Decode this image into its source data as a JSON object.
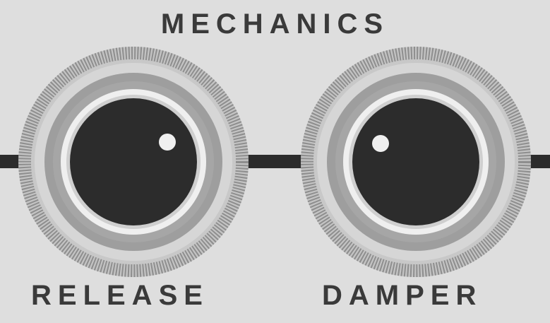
{
  "section": {
    "title": "MECHANICS"
  },
  "knobs": [
    {
      "id": "release",
      "label": "RELEASE"
    },
    {
      "id": "damper",
      "label": "DAMPER"
    }
  ],
  "colors": {
    "background": "#dedede",
    "label_text": "#3a3a3a",
    "knob_cap": "#2c2c2c",
    "indicator_dot": "#f0f0f0",
    "rail": "#2c2c2c"
  },
  "icons": {
    "knob": "rotary-knob",
    "indicator": "position-dot"
  }
}
